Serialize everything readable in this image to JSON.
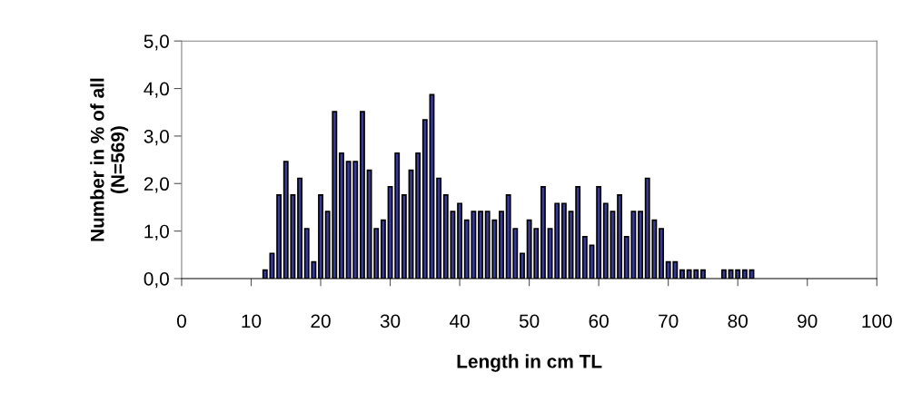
{
  "chart_data": {
    "type": "bar",
    "xlabel": "Length in cm TL",
    "ylabel": "Number in % of all\n(N=569)",
    "x": [
      12,
      13,
      14,
      15,
      16,
      17,
      18,
      19,
      20,
      21,
      22,
      23,
      24,
      25,
      26,
      27,
      28,
      29,
      30,
      31,
      32,
      33,
      34,
      35,
      36,
      37,
      38,
      39,
      40,
      41,
      42,
      43,
      44,
      45,
      46,
      47,
      48,
      49,
      50,
      51,
      52,
      53,
      54,
      55,
      56,
      57,
      58,
      59,
      60,
      61,
      62,
      63,
      64,
      65,
      66,
      67,
      68,
      69,
      70,
      71,
      72,
      73,
      74,
      75,
      76,
      77,
      78,
      79,
      80,
      81,
      82
    ],
    "series": [
      {
        "color": "#3a3a9a",
        "values": [
          0.18,
          0.53,
          1.76,
          2.46,
          1.76,
          2.11,
          1.05,
          0.35,
          1.76,
          1.41,
          3.51,
          2.64,
          2.46,
          2.46,
          3.51,
          2.28,
          1.05,
          1.23,
          1.93,
          2.64,
          1.76,
          2.28,
          2.64,
          3.34,
          3.87,
          2.11,
          1.76,
          1.41,
          1.58,
          1.23,
          1.41,
          1.41,
          1.41,
          1.23,
          1.41,
          1.76,
          1.05,
          0.53,
          1.23,
          1.05,
          1.93,
          1.05,
          1.58,
          1.58,
          1.41,
          1.93,
          0.88,
          0.7,
          1.93,
          1.58,
          1.41,
          1.76,
          0.88,
          1.41,
          1.41,
          2.11,
          1.23,
          1.05,
          0.35,
          0.35,
          0.18,
          0.18,
          0.18,
          0.18,
          0,
          0,
          0.18,
          0.18,
          0.18,
          0.18,
          0.18
        ]
      }
    ],
    "xlim": [
      0,
      100
    ],
    "xticks": [
      0,
      10,
      20,
      30,
      40,
      50,
      60,
      70,
      80,
      90,
      100
    ],
    "ylim": [
      0,
      5
    ],
    "yticks": [
      {
        "value": 0,
        "label": "0,0"
      },
      {
        "value": 1,
        "label": "1,0"
      },
      {
        "value": 2,
        "label": "2,0"
      },
      {
        "value": 3,
        "label": "3,0"
      },
      {
        "value": 4,
        "label": "4,0"
      },
      {
        "value": 5,
        "label": "5,0"
      }
    ],
    "grid": false
  }
}
